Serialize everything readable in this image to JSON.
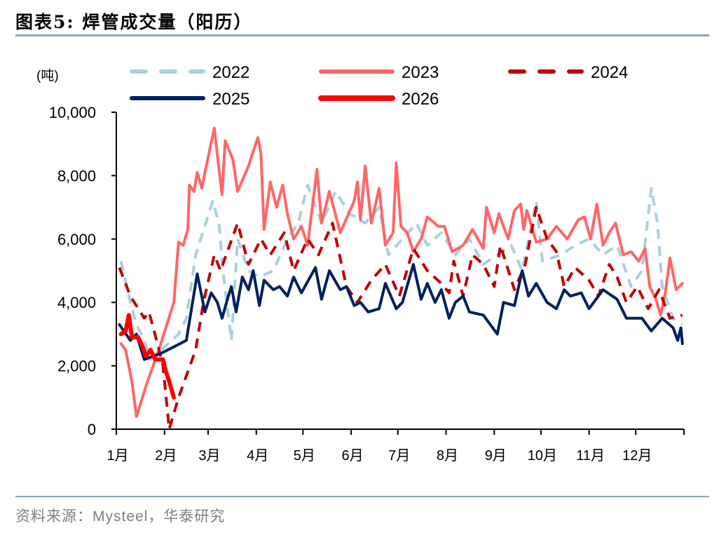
{
  "title": "图表5:  焊管成交量（阳历）",
  "source": "资料来源：Mysteel，华泰研究",
  "chart_data": {
    "type": "line",
    "title": "图表5:  焊管成交量（阳历）",
    "ylabel": "(吨)",
    "xlabel": "",
    "ylim": [
      0,
      10000
    ],
    "yticks": [
      0,
      2000,
      4000,
      6000,
      8000,
      10000
    ],
    "ytick_labels": [
      "0",
      "2,000",
      "4,000",
      "6,000",
      "8,000",
      "10,000"
    ],
    "xtick_labels": [
      "1月",
      "2月",
      "3月",
      "4月",
      "5月",
      "6月",
      "7月",
      "8月",
      "9月",
      "10月",
      "11月",
      "12月"
    ],
    "x_format": "MM-DD",
    "grid": false,
    "legend_placement": "top",
    "series": [
      {
        "name": "2022",
        "color": "#a9d0e0",
        "style": "dashed",
        "points": [
          [
            "01-04",
            5300
          ],
          [
            "01-10",
            4000
          ],
          [
            "01-14",
            3300
          ],
          [
            "01-19",
            2800
          ],
          [
            "01-23",
            2200
          ],
          [
            "01-30",
            2500
          ],
          [
            "02-10",
            3000
          ],
          [
            "02-15",
            3500
          ],
          [
            "02-21",
            5500
          ],
          [
            "03-04",
            7200
          ],
          [
            "03-08",
            6500
          ],
          [
            "03-11",
            4800
          ],
          [
            "03-16",
            2800
          ],
          [
            "03-20",
            6000
          ],
          [
            "03-27",
            5000
          ],
          [
            "04-03",
            4800
          ],
          [
            "04-12",
            5000
          ],
          [
            "04-21",
            6000
          ],
          [
            "04-28",
            6500
          ],
          [
            "05-04",
            7700
          ],
          [
            "05-13",
            6500
          ],
          [
            "05-22",
            7500
          ],
          [
            "05-31",
            6800
          ],
          [
            "06-10",
            6500
          ],
          [
            "06-19",
            7000
          ],
          [
            "06-25",
            5500
          ],
          [
            "07-04",
            6000
          ],
          [
            "07-13",
            6500
          ],
          [
            "07-20",
            5800
          ],
          [
            "07-29",
            6200
          ],
          [
            "08-07",
            5500
          ],
          [
            "08-16",
            6000
          ],
          [
            "08-25",
            5200
          ],
          [
            "09-03",
            5500
          ],
          [
            "09-12",
            5800
          ],
          [
            "09-19",
            5000
          ],
          [
            "09-28",
            7200
          ],
          [
            "10-02",
            5300
          ],
          [
            "10-14",
            5500
          ],
          [
            "10-23",
            5800
          ],
          [
            "11-01",
            6000
          ],
          [
            "11-10",
            5500
          ],
          [
            "11-19",
            5800
          ],
          [
            "11-28",
            4500
          ],
          [
            "12-05",
            5000
          ],
          [
            "12-11",
            7600
          ],
          [
            "12-15",
            6500
          ],
          [
            "12-18",
            4500
          ],
          [
            "12-25",
            3500
          ],
          [
            "12-31",
            3300
          ]
        ]
      },
      {
        "name": "2023",
        "color": "#ff6666",
        "style": "solid",
        "points": [
          [
            "01-04",
            2700
          ],
          [
            "01-07",
            2500
          ],
          [
            "01-11",
            1500
          ],
          [
            "01-14",
            400
          ],
          [
            "01-21",
            1500
          ],
          [
            "01-29",
            2600
          ],
          [
            "02-07",
            4000
          ],
          [
            "02-10",
            5900
          ],
          [
            "02-13",
            5800
          ],
          [
            "02-16",
            6300
          ],
          [
            "02-17",
            7700
          ],
          [
            "02-20",
            7500
          ],
          [
            "02-22",
            8100
          ],
          [
            "02-25",
            7600
          ],
          [
            "02-27",
            8100
          ],
          [
            "03-05",
            9500
          ],
          [
            "03-08",
            8200
          ],
          [
            "03-10",
            7400
          ],
          [
            "03-12",
            9100
          ],
          [
            "03-17",
            8500
          ],
          [
            "03-20",
            7500
          ],
          [
            "03-27",
            8300
          ],
          [
            "04-02",
            9200
          ],
          [
            "04-04",
            8700
          ],
          [
            "04-06",
            6300
          ],
          [
            "04-10",
            7800
          ],
          [
            "04-14",
            7000
          ],
          [
            "04-18",
            7700
          ],
          [
            "04-21",
            6800
          ],
          [
            "04-25",
            6000
          ],
          [
            "04-30",
            6400
          ],
          [
            "05-04",
            5800
          ],
          [
            "05-10",
            8200
          ],
          [
            "05-13",
            6500
          ],
          [
            "05-18",
            7500
          ],
          [
            "05-25",
            6200
          ],
          [
            "06-03",
            7200
          ],
          [
            "06-05",
            7800
          ],
          [
            "06-07",
            6600
          ],
          [
            "06-10",
            8300
          ],
          [
            "06-14",
            6500
          ],
          [
            "06-19",
            7600
          ],
          [
            "06-23",
            5800
          ],
          [
            "06-28",
            6200
          ],
          [
            "06-30",
            8400
          ],
          [
            "07-03",
            6400
          ],
          [
            "07-07",
            6200
          ],
          [
            "07-11",
            5600
          ],
          [
            "07-16",
            6000
          ],
          [
            "07-20",
            6700
          ],
          [
            "07-27",
            6400
          ],
          [
            "07-31",
            6400
          ],
          [
            "08-05",
            5600
          ],
          [
            "08-12",
            5800
          ],
          [
            "08-18",
            6300
          ],
          [
            "08-25",
            5700
          ],
          [
            "08-27",
            7000
          ],
          [
            "09-01",
            6200
          ],
          [
            "09-04",
            6800
          ],
          [
            "09-10",
            6000
          ],
          [
            "09-14",
            6900
          ],
          [
            "09-18",
            7100
          ],
          [
            "09-20",
            6300
          ],
          [
            "09-22",
            6900
          ],
          [
            "09-28",
            5900
          ],
          [
            "10-05",
            6000
          ],
          [
            "10-11",
            6400
          ],
          [
            "10-18",
            6000
          ],
          [
            "10-25",
            6600
          ],
          [
            "10-29",
            6700
          ],
          [
            "11-02",
            6000
          ],
          [
            "11-06",
            7100
          ],
          [
            "11-10",
            5800
          ],
          [
            "11-14",
            6200
          ],
          [
            "11-18",
            6500
          ],
          [
            "11-23",
            5500
          ],
          [
            "11-28",
            5600
          ],
          [
            "12-03",
            5300
          ],
          [
            "12-07",
            5700
          ],
          [
            "12-10",
            4500
          ],
          [
            "12-14",
            4100
          ],
          [
            "12-17",
            3600
          ],
          [
            "12-20",
            4300
          ],
          [
            "12-23",
            5400
          ],
          [
            "12-27",
            4400
          ],
          [
            "12-31",
            4600
          ]
        ]
      },
      {
        "name": "2024",
        "color": "#c00000",
        "style": "dashed",
        "points": [
          [
            "01-03",
            5100
          ],
          [
            "01-10",
            4200
          ],
          [
            "01-19",
            3500
          ],
          [
            "01-22",
            3700
          ],
          [
            "01-28",
            2600
          ],
          [
            "01-31",
            2000
          ],
          [
            "02-04",
            0
          ],
          [
            "02-10",
            1000
          ],
          [
            "02-21",
            2500
          ],
          [
            "02-26",
            4000
          ],
          [
            "03-05",
            5500
          ],
          [
            "03-09",
            5000
          ],
          [
            "03-20",
            6500
          ],
          [
            "03-27",
            5200
          ],
          [
            "04-04",
            6000
          ],
          [
            "04-10",
            5500
          ],
          [
            "04-19",
            6200
          ],
          [
            "04-25",
            5000
          ],
          [
            "05-04",
            6000
          ],
          [
            "05-11",
            5500
          ],
          [
            "05-20",
            6500
          ],
          [
            "05-29",
            4500
          ],
          [
            "06-05",
            4000
          ],
          [
            "06-14",
            4700
          ],
          [
            "06-23",
            5200
          ],
          [
            "07-02",
            4200
          ],
          [
            "07-11",
            5700
          ],
          [
            "07-20",
            5000
          ],
          [
            "07-29",
            4600
          ],
          [
            "08-03",
            4300
          ],
          [
            "08-06",
            5300
          ],
          [
            "08-12",
            4200
          ],
          [
            "08-18",
            5500
          ],
          [
            "08-25",
            5200
          ],
          [
            "09-01",
            4500
          ],
          [
            "09-05",
            5800
          ],
          [
            "09-14",
            4400
          ],
          [
            "09-21",
            5200
          ],
          [
            "09-28",
            7000
          ],
          [
            "10-05",
            6000
          ],
          [
            "10-11",
            5600
          ],
          [
            "10-16",
            4500
          ],
          [
            "10-23",
            5100
          ],
          [
            "11-01",
            4700
          ],
          [
            "11-07",
            4200
          ],
          [
            "11-14",
            5200
          ],
          [
            "11-19",
            4800
          ],
          [
            "11-25",
            4000
          ],
          [
            "12-02",
            4500
          ],
          [
            "12-09",
            3800
          ],
          [
            "12-16",
            4400
          ],
          [
            "12-23",
            3500
          ],
          [
            "12-31",
            3600
          ]
        ]
      },
      {
        "name": "2025",
        "color": "#002060",
        "style": "solid",
        "points": [
          [
            "01-03",
            3300
          ],
          [
            "01-10",
            2800
          ],
          [
            "01-14",
            3000
          ],
          [
            "01-19",
            2200
          ],
          [
            "01-30",
            2400
          ],
          [
            "02-15",
            2800
          ],
          [
            "02-22",
            4900
          ],
          [
            "02-27",
            3700
          ],
          [
            "03-03",
            4300
          ],
          [
            "03-07",
            4000
          ],
          [
            "03-10",
            3500
          ],
          [
            "03-14",
            4200
          ],
          [
            "03-16",
            4500
          ],
          [
            "03-19",
            3700
          ],
          [
            "03-23",
            4800
          ],
          [
            "03-27",
            4400
          ],
          [
            "03-30",
            5000
          ],
          [
            "04-03",
            3900
          ],
          [
            "04-06",
            4700
          ],
          [
            "04-12",
            4400
          ],
          [
            "04-16",
            4500
          ],
          [
            "04-21",
            4200
          ],
          [
            "04-25",
            4800
          ],
          [
            "04-30",
            4300
          ],
          [
            "05-09",
            5100
          ],
          [
            "05-13",
            4100
          ],
          [
            "05-18",
            5000
          ],
          [
            "05-25",
            4400
          ],
          [
            "05-29",
            4500
          ],
          [
            "06-03",
            3900
          ],
          [
            "06-07",
            4000
          ],
          [
            "06-12",
            3700
          ],
          [
            "06-19",
            3800
          ],
          [
            "06-23",
            4600
          ],
          [
            "06-30",
            3800
          ],
          [
            "07-04",
            4000
          ],
          [
            "07-11",
            5200
          ],
          [
            "07-16",
            4100
          ],
          [
            "07-20",
            4600
          ],
          [
            "07-25",
            4000
          ],
          [
            "07-29",
            4400
          ],
          [
            "08-03",
            3500
          ],
          [
            "08-07",
            4000
          ],
          [
            "08-12",
            4200
          ],
          [
            "08-16",
            3700
          ],
          [
            "08-25",
            3600
          ],
          [
            "09-03",
            3000
          ],
          [
            "09-07",
            4000
          ],
          [
            "09-14",
            3900
          ],
          [
            "09-19",
            5000
          ],
          [
            "09-23",
            4200
          ],
          [
            "09-28",
            4600
          ],
          [
            "10-05",
            4000
          ],
          [
            "10-11",
            3800
          ],
          [
            "10-16",
            4400
          ],
          [
            "10-20",
            4200
          ],
          [
            "10-27",
            4300
          ],
          [
            "11-01",
            3800
          ],
          [
            "11-10",
            4400
          ],
          [
            "11-19",
            4100
          ],
          [
            "11-25",
            3500
          ],
          [
            "12-05",
            3500
          ],
          [
            "12-11",
            3100
          ],
          [
            "12-18",
            3500
          ],
          [
            "12-25",
            3200
          ],
          [
            "12-28",
            2800
          ],
          [
            "12-30",
            3200
          ],
          [
            "12-31",
            2700
          ]
        ]
      },
      {
        "name": "2026",
        "color": "#ff0000",
        "style": "solid",
        "points": [
          [
            "01-04",
            3000
          ],
          [
            "01-07",
            3100
          ],
          [
            "01-09",
            3600
          ],
          [
            "01-11",
            2900
          ],
          [
            "01-15",
            2900
          ],
          [
            "01-18",
            2600
          ],
          [
            "01-20",
            2300
          ],
          [
            "01-23",
            2500
          ],
          [
            "01-26",
            2200
          ],
          [
            "01-31",
            2200
          ],
          [
            "02-02",
            1800
          ],
          [
            "02-04",
            1500
          ],
          [
            "02-07",
            1000
          ]
        ]
      }
    ]
  }
}
